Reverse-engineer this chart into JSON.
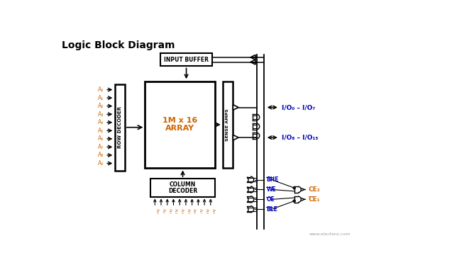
{
  "title": "Logic Block Diagram",
  "bg_color": "#ffffff",
  "title_color": "#000000",
  "orange_color": "#cc6600",
  "blue_color": "#0000bb",
  "black_color": "#000000",
  "gray_color": "#888888",
  "row_decoder_label": "ROW DECODER",
  "array_label1": "1M x 16",
  "array_label2": "ARRAY",
  "sense_amps_label": "SENSE AMPS",
  "input_buffer_label": "INPUT BUFFER",
  "column_decoder_label1": "COLUMN",
  "column_decoder_label2": "DECODER",
  "A_row_labels": [
    "A₀",
    "A₁",
    "A₂",
    "A₃",
    "A₄",
    "A₅",
    "A₆",
    "A₇",
    "A₈",
    "A₉"
  ],
  "A_col_labels": [
    "A₁₀",
    "A₁₁",
    "A₁₂",
    "A₁₃",
    "A₁₄",
    "A₁₅",
    "A₁₆",
    "A₁₇",
    "A₁₈",
    "A₁₉"
  ],
  "io_label1": "I/O₀ – I/O₇",
  "io_label2": "I/O₈ – I/O₁₅",
  "bhe_label": "BHE",
  "we_label": "WE",
  "oe_label": "OE",
  "ble_label": "BLE",
  "ce2_label": "CE₂",
  "ce1_label": "CE₁",
  "watermark": "www.elecfans.com"
}
